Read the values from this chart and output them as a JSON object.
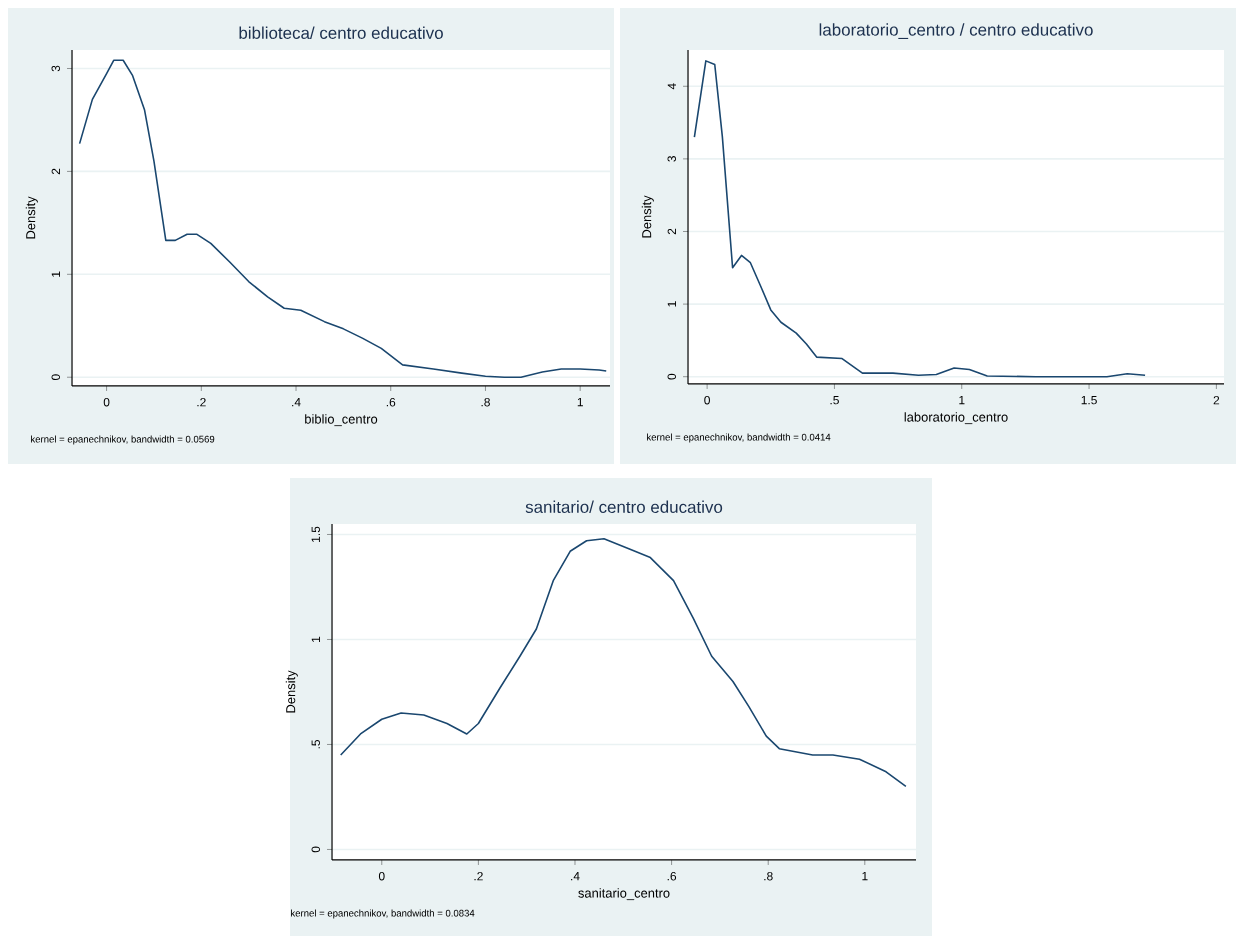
{
  "chart_data": [
    {
      "type": "line",
      "title": "biblioteca/ centro educativo",
      "xlabel": "biblio_centro",
      "ylabel": "Density",
      "annotations": [
        "kernel = epanechnikov, bandwidth = 0.0569"
      ],
      "grid": "y",
      "marker": "none",
      "xlim": [
        -0.073,
        1.063
      ],
      "ylim": [
        -0.085,
        3.18
      ],
      "xticks": [
        0,
        {
          "value": 0.2,
          "label": ".2"
        },
        {
          "value": 0.4,
          "label": ".4"
        },
        {
          "value": 0.6,
          "label": ".6"
        },
        {
          "value": 0.8,
          "label": ".8"
        },
        1
      ],
      "yticks": [
        0,
        1,
        2,
        3
      ],
      "series": [
        {
          "color": "#1a476f",
          "x": [
            -0.057,
            -0.03,
            0,
            0.015,
            0.035,
            0.055,
            0.08,
            0.1,
            0.125,
            0.145,
            0.17,
            0.19,
            0.22,
            0.26,
            0.3,
            0.34,
            0.375,
            0.41,
            0.46,
            0.5,
            0.54,
            0.58,
            0.625,
            0.69,
            0.75,
            0.8,
            0.84,
            0.875,
            0.92,
            0.96,
            1.0,
            1.04,
            1.055
          ],
          "values": [
            2.27,
            2.7,
            2.95,
            3.08,
            3.08,
            2.93,
            2.6,
            2.1,
            1.33,
            1.33,
            1.39,
            1.39,
            1.3,
            1.12,
            0.93,
            0.78,
            0.67,
            0.65,
            0.54,
            0.47,
            0.38,
            0.28,
            0.12,
            0.08,
            0.04,
            0.01,
            0,
            0,
            0.05,
            0.08,
            0.08,
            0.07,
            0.06
          ]
        }
      ]
    },
    {
      "type": "line",
      "title": "laboratorio_centro / centro educativo",
      "xlabel": "laboratorio_centro",
      "ylabel": "Density",
      "annotations": [
        "kernel = epanechnikov, bandwidth = 0.0414"
      ],
      "grid": "y",
      "marker": "none",
      "xlim": [
        -0.075,
        2.03
      ],
      "ylim": [
        -0.1,
        4.5
      ],
      "xticks": [
        0,
        {
          "value": 0.5,
          "label": ".5"
        },
        1,
        1.5,
        2
      ],
      "yticks": [
        0,
        1,
        2,
        3,
        4
      ],
      "series": [
        {
          "color": "#1a476f",
          "x": [
            -0.05,
            -0.005,
            0.03,
            0.06,
            0.1,
            0.135,
            0.17,
            0.21,
            0.25,
            0.29,
            0.35,
            0.39,
            0.43,
            0.53,
            0.61,
            0.73,
            0.83,
            0.9,
            0.97,
            1.03,
            1.1,
            1.29,
            1.57,
            1.65,
            1.72
          ],
          "values": [
            3.3,
            4.35,
            4.3,
            3.3,
            1.5,
            1.67,
            1.57,
            1.25,
            0.92,
            0.75,
            0.6,
            0.45,
            0.27,
            0.25,
            0.05,
            0.05,
            0.02,
            0.03,
            0.12,
            0.1,
            0.01,
            0,
            0,
            0.04,
            0.02
          ]
        }
      ]
    },
    {
      "type": "line",
      "title": "sanitario/ centro educativo",
      "xlabel": "sanitario_centro",
      "ylabel": "Density",
      "annotations": [
        "kernel = epanechnikov, bandwidth = 0.0834"
      ],
      "grid": "y",
      "marker": "none",
      "xlim": [
        -0.103,
        1.106
      ],
      "ylim": [
        -0.05,
        1.55
      ],
      "xticks": [
        0,
        {
          "value": 0.2,
          "label": ".2"
        },
        {
          "value": 0.4,
          "label": ".4"
        },
        {
          "value": 0.6,
          "label": ".6"
        },
        {
          "value": 0.8,
          "label": ".8"
        },
        1
      ],
      "yticks": [
        0,
        {
          "value": 0.5,
          "label": ".5"
        },
        1,
        1.5
      ],
      "series": [
        {
          "color": "#1a476f",
          "x": [
            -0.085,
            -0.044,
            0,
            0.04,
            0.087,
            0.135,
            0.176,
            0.2,
            0.245,
            0.286,
            0.32,
            0.355,
            0.39,
            0.424,
            0.46,
            0.514,
            0.556,
            0.604,
            0.645,
            0.683,
            0.727,
            0.76,
            0.796,
            0.823,
            0.892,
            0.934,
            0.989,
            1.044,
            1.085
          ],
          "values": [
            0.45,
            0.55,
            0.62,
            0.65,
            0.64,
            0.6,
            0.55,
            0.6,
            0.77,
            0.92,
            1.05,
            1.28,
            1.42,
            1.47,
            1.48,
            1.43,
            1.39,
            1.28,
            1.1,
            0.92,
            0.8,
            0.68,
            0.54,
            0.48,
            0.45,
            0.45,
            0.43,
            0.37,
            0.3
          ]
        }
      ]
    }
  ]
}
